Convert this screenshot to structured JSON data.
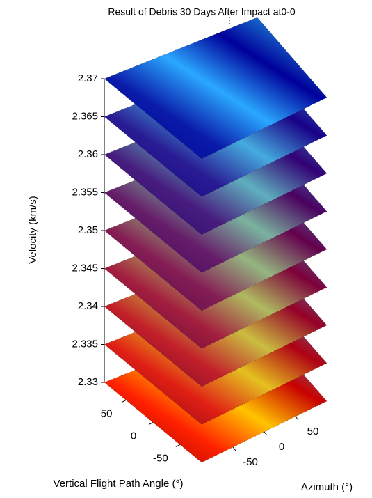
{
  "chart_data": {
    "type": "slice",
    "title": "Result of Debris 30 Days After Impact at0-0",
    "xlabel": "Azimuth (°)",
    "ylabel": "Vertical Flight Path Angle (°)",
    "zlabel": "Velocity (km/s)",
    "slices": [
      2.33,
      2.335,
      2.34,
      2.345,
      2.35,
      2.355,
      2.36,
      2.365,
      2.37
    ],
    "zlim": [
      2.33,
      2.37
    ],
    "zticks": [
      2.33,
      2.335,
      2.34,
      2.345,
      2.35,
      2.355,
      2.36,
      2.365,
      2.37
    ],
    "xlim": [
      -100,
      100
    ],
    "xticks": [
      -50,
      0,
      50
    ],
    "ylim": [
      -90,
      90
    ],
    "yticks": [
      -50,
      0,
      50
    ]
  }
}
